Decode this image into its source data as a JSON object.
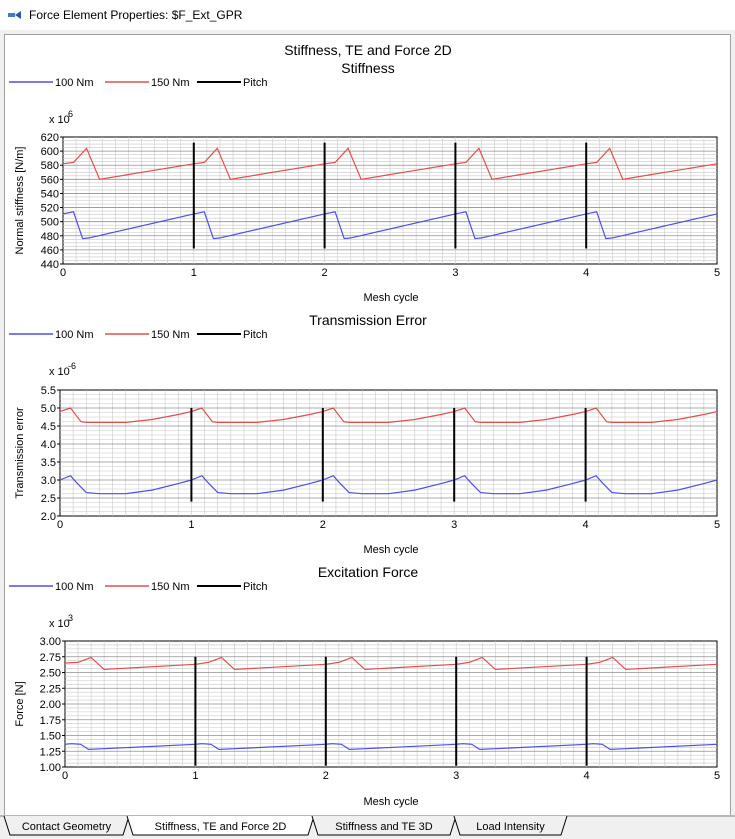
{
  "window": {
    "title": "Force Element Properties: $F_Ext_GPR",
    "icon": "app-icon"
  },
  "page_title": "Stiffness, TE and Force 2D",
  "tabs": [
    {
      "label": "Contact Geometry",
      "active": false
    },
    {
      "label": "Stiffness, TE and Force 2D",
      "active": true
    },
    {
      "label": "Stiffness and TE 3D",
      "active": false
    },
    {
      "label": "Load Intensity",
      "active": false
    }
  ],
  "colors": {
    "series_100": "#5050e0",
    "series_150": "#e05050",
    "pitch": "#000000"
  },
  "chart_data": [
    {
      "type": "line",
      "title": "Stiffness",
      "xlabel": "Mesh cycle",
      "ylabel": "Normal stiffness [N/m]",
      "exponent_base": "x 10",
      "exponent_power": "6",
      "xlim": [
        0,
        5
      ],
      "ylim": [
        440,
        620
      ],
      "xticks": [
        "0",
        "1",
        "2",
        "3",
        "4",
        "5"
      ],
      "yticks": [
        "440",
        "460",
        "480",
        "500",
        "520",
        "540",
        "560",
        "580",
        "600",
        "620"
      ],
      "legend": [
        "100 Nm",
        "150 Nm",
        "Pitch"
      ],
      "pitch_x": [
        1,
        2,
        3,
        4
      ],
      "pitch_range": [
        462,
        612
      ],
      "series": [
        {
          "name": "100 Nm",
          "x": [
            0,
            0.08,
            0.15,
            0.2,
            1,
            1.08,
            1.15,
            1.2,
            2,
            2.08,
            2.15,
            2.2,
            3,
            3.08,
            3.15,
            3.2,
            4,
            4.08,
            4.15,
            4.2,
            5
          ],
          "y": [
            511,
            514,
            476,
            477,
            511,
            514,
            476,
            477,
            511,
            514,
            476,
            477,
            511,
            514,
            476,
            477,
            511,
            514,
            476,
            477,
            511
          ]
        },
        {
          "name": "150 Nm",
          "x": [
            0,
            0.08,
            0.18,
            0.28,
            1,
            1.08,
            1.18,
            1.28,
            2,
            2.08,
            2.18,
            2.28,
            3,
            3.08,
            3.18,
            3.28,
            4,
            4.08,
            4.18,
            4.28,
            5
          ],
          "y": [
            582,
            584,
            604,
            560,
            582,
            584,
            604,
            560,
            582,
            584,
            604,
            560,
            582,
            584,
            604,
            560,
            582,
            584,
            604,
            560,
            582
          ]
        }
      ]
    },
    {
      "type": "line",
      "title": "Transmission Error",
      "xlabel": "Mesh cycle",
      "ylabel": "Transmission error",
      "exponent_base": "x 10",
      "exponent_power": "-6",
      "xlim": [
        0,
        5
      ],
      "ylim": [
        2.0,
        5.5
      ],
      "xticks": [
        "0",
        "1",
        "2",
        "3",
        "4",
        "5"
      ],
      "yticks": [
        "2.0",
        "2.5",
        "3.0",
        "3.5",
        "4.0",
        "4.5",
        "5.0",
        "5.5"
      ],
      "legend": [
        "100 Nm",
        "150 Nm",
        "Pitch"
      ],
      "pitch_x": [
        1,
        2,
        3,
        4
      ],
      "pitch_range": [
        2.4,
        5.0
      ],
      "series": [
        {
          "name": "100 Nm",
          "x": [
            0,
            0.08,
            0.12,
            0.2,
            0.3,
            0.5,
            0.7,
            0.9,
            1,
            1.08,
            1.12,
            1.2,
            1.3,
            1.5,
            1.7,
            1.9,
            2,
            2.08,
            2.12,
            2.2,
            2.3,
            2.5,
            2.7,
            2.9,
            3,
            3.08,
            3.12,
            3.2,
            3.3,
            3.5,
            3.7,
            3.9,
            4,
            4.08,
            4.12,
            4.2,
            4.3,
            4.5,
            4.7,
            4.9,
            5
          ],
          "y": [
            3.0,
            3.12,
            2.95,
            2.65,
            2.62,
            2.62,
            2.72,
            2.9,
            3.0,
            3.12,
            2.95,
            2.65,
            2.62,
            2.62,
            2.72,
            2.9,
            3.0,
            3.12,
            2.95,
            2.65,
            2.62,
            2.62,
            2.72,
            2.9,
            3.0,
            3.12,
            2.95,
            2.65,
            2.62,
            2.62,
            2.72,
            2.9,
            3.0,
            3.12,
            2.95,
            2.65,
            2.62,
            2.62,
            2.72,
            2.9,
            3.0
          ]
        },
        {
          "name": "150 Nm",
          "x": [
            0,
            0.08,
            0.16,
            0.2,
            0.3,
            0.5,
            0.7,
            0.9,
            1,
            1.08,
            1.16,
            1.2,
            1.3,
            1.5,
            1.7,
            1.9,
            2,
            2.08,
            2.16,
            2.2,
            2.3,
            2.5,
            2.7,
            2.9,
            3,
            3.08,
            3.16,
            3.2,
            3.3,
            3.5,
            3.7,
            3.9,
            4,
            4.08,
            4.16,
            4.2,
            4.3,
            4.5,
            4.7,
            4.9,
            5
          ],
          "y": [
            4.9,
            5.0,
            4.62,
            4.6,
            4.6,
            4.6,
            4.68,
            4.82,
            4.9,
            5.0,
            4.62,
            4.6,
            4.6,
            4.6,
            4.68,
            4.82,
            4.9,
            5.0,
            4.62,
            4.6,
            4.6,
            4.6,
            4.68,
            4.82,
            4.9,
            5.0,
            4.62,
            4.6,
            4.6,
            4.6,
            4.68,
            4.82,
            4.9,
            5.0,
            4.62,
            4.6,
            4.6,
            4.6,
            4.68,
            4.82,
            4.9
          ]
        }
      ]
    },
    {
      "type": "line",
      "title": "Excitation Force",
      "xlabel": "Mesh cycle",
      "ylabel": "Force [N]",
      "exponent_base": "x 10",
      "exponent_power": "3",
      "xlim": [
        0,
        5
      ],
      "ylim": [
        1.0,
        3.0
      ],
      "xticks": [
        "0",
        "1",
        "2",
        "3",
        "4",
        "5"
      ],
      "yticks": [
        "1.00",
        "1.25",
        "1.50",
        "1.75",
        "2.00",
        "2.25",
        "2.50",
        "2.75",
        "3.00"
      ],
      "legend": [
        "100 Nm",
        "150 Nm",
        "Pitch"
      ],
      "pitch_x": [
        1,
        2,
        3,
        4
      ],
      "pitch_range": [
        1.02,
        2.75
      ],
      "series": [
        {
          "name": "100 Nm",
          "x": [
            0,
            0.05,
            0.12,
            0.18,
            0.3,
            1,
            1.05,
            1.12,
            1.18,
            1.3,
            2,
            2.05,
            2.12,
            2.18,
            2.3,
            3,
            3.05,
            3.12,
            3.18,
            3.3,
            4,
            4.05,
            4.12,
            4.18,
            4.3,
            5
          ],
          "y": [
            1.36,
            1.37,
            1.36,
            1.28,
            1.29,
            1.36,
            1.37,
            1.36,
            1.28,
            1.29,
            1.36,
            1.37,
            1.36,
            1.28,
            1.29,
            1.36,
            1.37,
            1.36,
            1.28,
            1.29,
            1.36,
            1.37,
            1.36,
            1.28,
            1.29,
            1.36
          ]
        },
        {
          "name": "150 Nm",
          "x": [
            0,
            0.1,
            0.2,
            0.3,
            1,
            1.1,
            1.2,
            1.3,
            2,
            2.1,
            2.2,
            2.3,
            3,
            3.1,
            3.2,
            3.3,
            4,
            4.1,
            4.2,
            4.3,
            5
          ],
          "y": [
            2.65,
            2.66,
            2.74,
            2.55,
            2.63,
            2.66,
            2.74,
            2.55,
            2.63,
            2.66,
            2.74,
            2.55,
            2.63,
            2.66,
            2.74,
            2.55,
            2.63,
            2.66,
            2.74,
            2.55,
            2.63
          ]
        }
      ]
    }
  ]
}
